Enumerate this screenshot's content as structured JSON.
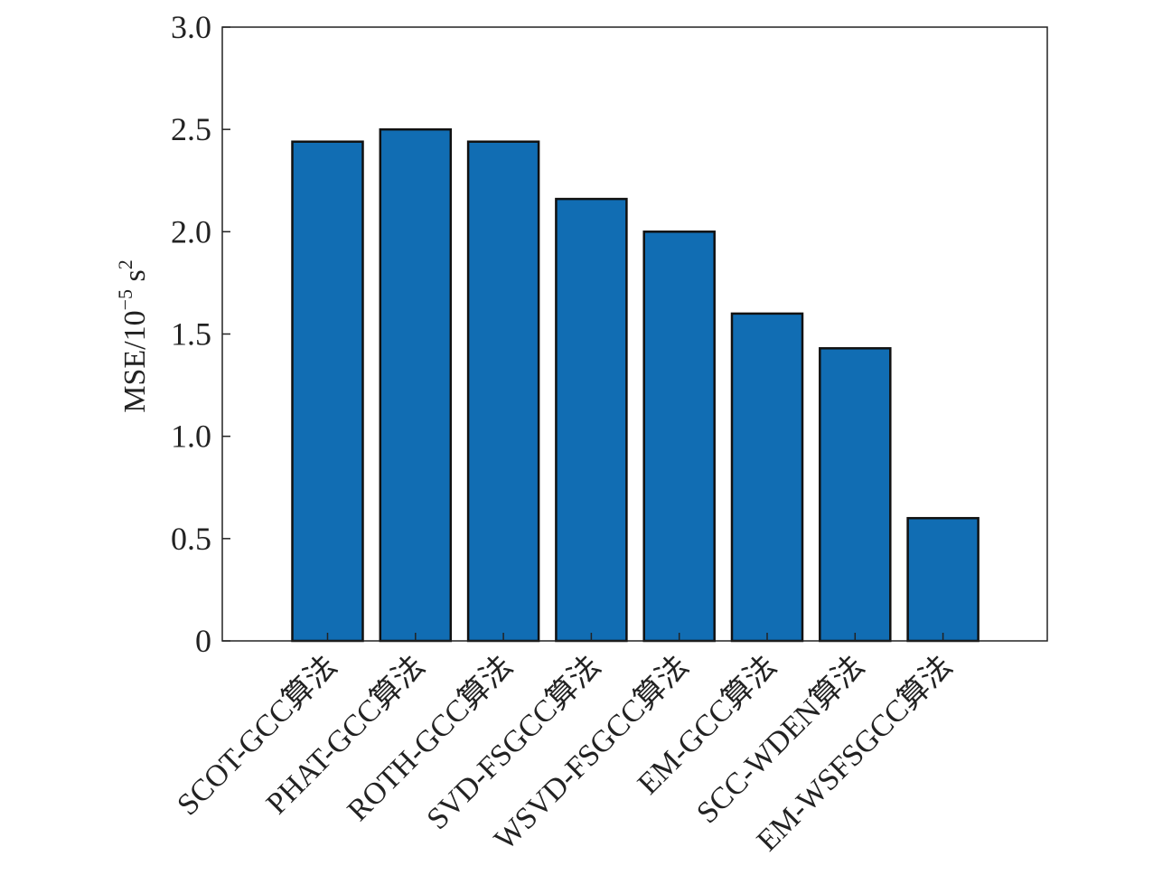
{
  "chart_data": {
    "type": "bar",
    "categories": [
      "SCOT-GCC算法",
      "PHAT-GCC算法",
      "ROTH-GCC算法",
      "SVD-FSGCC算法",
      "WSVD-FSGCC算法",
      "EM-GCC算法",
      "SCC-WDEN算法",
      "EM-WSFSGCC算法"
    ],
    "values": [
      2.44,
      2.5,
      2.44,
      2.16,
      2.0,
      1.6,
      1.43,
      0.6
    ],
    "ylabel": {
      "prefix": "MSE/10",
      "exponent": "−5",
      "unit": " s",
      "unit_exponent": "2"
    },
    "ylim": [
      0,
      3.0
    ],
    "yticks": [
      "0",
      "0.5",
      "1.0",
      "1.5",
      "2.0",
      "2.5",
      "3.0"
    ],
    "bar_color": "#116db3",
    "grid": false,
    "legend": "none"
  }
}
